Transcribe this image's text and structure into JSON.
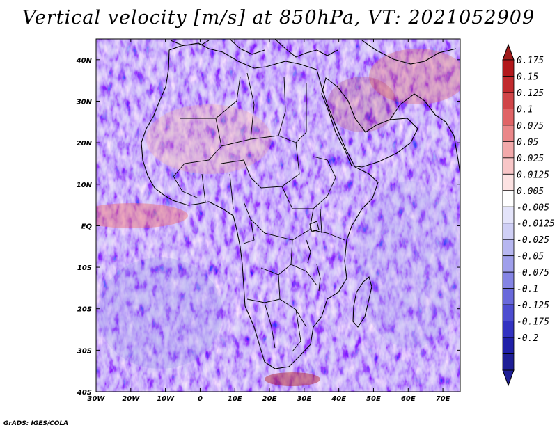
{
  "title": "Vertical velocity [m/s] at 850hPa, VT: 2021052909",
  "credit": "GrADS: IGES/COLA",
  "map": {
    "lat_labels": [
      "40N",
      "30N",
      "20N",
      "10N",
      "EQ",
      "10S",
      "20S",
      "30S",
      "40S"
    ],
    "lat_values": [
      40,
      30,
      20,
      10,
      0,
      -10,
      -20,
      -30,
      -40
    ],
    "lon_labels": [
      "30W",
      "20W",
      "10W",
      "0",
      "10E",
      "20E",
      "30E",
      "40E",
      "50E",
      "60E",
      "70E"
    ],
    "lon_values": [
      -30,
      -20,
      -10,
      0,
      10,
      20,
      30,
      40,
      50,
      60,
      70
    ],
    "lon_range": [
      -30,
      75
    ],
    "lat_range": [
      -40,
      45
    ]
  },
  "colorbar": {
    "labels": [
      "0.175",
      "0.15",
      "0.125",
      "0.1",
      "0.075",
      "0.05",
      "0.025",
      "0.0125",
      "0.005",
      "-0.005",
      "-0.0125",
      "-0.025",
      "-0.05",
      "-0.075",
      "-0.1",
      "-0.125",
      "-0.175",
      "-0.2"
    ],
    "colors": [
      "#b2181b",
      "#c12a2d",
      "#d04548",
      "#e06466",
      "#ea8789",
      "#f2a9aa",
      "#f8c6c7",
      "#fce2e2",
      "#ffffff",
      "#e4e4fa",
      "#cfcff5",
      "#b7b7f0",
      "#9f9feb",
      "#8484e4",
      "#6969db",
      "#4d4dd0",
      "#3232c1",
      "#2020a8"
    ],
    "top_color": "#9e1a1a",
    "bottom_color": "#1e1e96"
  }
}
